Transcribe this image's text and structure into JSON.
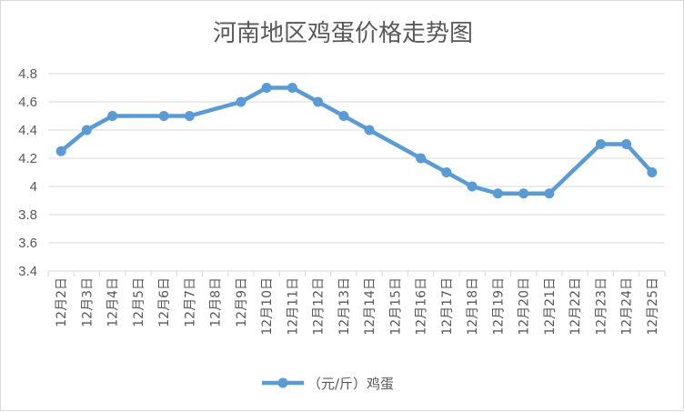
{
  "chart_data": {
    "type": "line",
    "title": "河南地区鸡蛋价格走势图",
    "categories": [
      "12月2日",
      "12月3日",
      "12月4日",
      "12月5日",
      "12月6日",
      "12月7日",
      "12月8日",
      "12月9日",
      "12月10日",
      "12月11日",
      "12月12日",
      "12月13日",
      "12月14日",
      "12月15日",
      "12月16日",
      "12月17日",
      "12月18日",
      "12月19日",
      "12月20日",
      "12月21日",
      "12月22日",
      "12月23日",
      "12月24日",
      "12月25日"
    ],
    "series": [
      {
        "name": "（元/斤）鸡蛋",
        "x": [
          "12月2日",
          "12月3日",
          "12月4日",
          "12月6日",
          "12月7日",
          "12月9日",
          "12月10日",
          "12月11日",
          "12月12日",
          "12月13日",
          "12月14日",
          "12月16日",
          "12月17日",
          "12月18日",
          "12月19日",
          "12月20日",
          "12月21日",
          "12月23日",
          "12月24日",
          "12月25日"
        ],
        "values": [
          4.25,
          4.4,
          4.5,
          4.5,
          4.5,
          4.6,
          4.7,
          4.7,
          4.6,
          4.5,
          4.4,
          4.2,
          4.1,
          4.0,
          3.95,
          3.95,
          3.95,
          4.3,
          4.3,
          4.1
        ]
      }
    ],
    "yticks": [
      "3.4",
      "3.6",
      "3.8",
      "4",
      "4.2",
      "4.4",
      "4.6",
      "4.8"
    ],
    "ylim": [
      3.4,
      4.8
    ],
    "xlabel": "",
    "ylabel": "",
    "grid": true,
    "legend": "bottom",
    "colors": {
      "line": "#5b9bd5",
      "grid": "#d9d9d9",
      "text": "#595959"
    }
  }
}
